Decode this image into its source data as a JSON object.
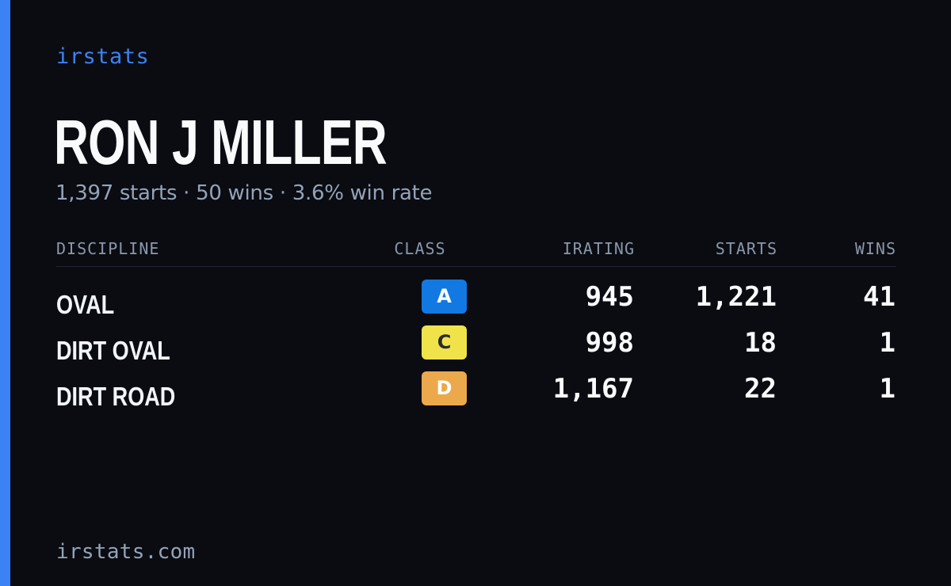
{
  "brand": "irstats",
  "driver": {
    "name": "RON J MILLER",
    "summary": "1,397 starts · 50 wins · 3.6% win rate"
  },
  "table": {
    "headers": {
      "discipline": "DISCIPLINE",
      "class": "CLASS",
      "irating": "IRATING",
      "starts": "STARTS",
      "wins": "WINS"
    },
    "rows": [
      {
        "discipline": "OVAL",
        "class": "A",
        "class_bg": "#1279e3",
        "class_fg": "#ffffff",
        "irating": "945",
        "starts": "1,221",
        "wins": "41"
      },
      {
        "discipline": "DIRT OVAL",
        "class": "C",
        "class_bg": "#f0e34a",
        "class_fg": "#2a2a2a",
        "irating": "998",
        "starts": "18",
        "wins": "1"
      },
      {
        "discipline": "DIRT ROAD",
        "class": "D",
        "class_bg": "#eba94b",
        "class_fg": "#ffffff",
        "irating": "1,167",
        "starts": "22",
        "wins": "1"
      }
    ]
  },
  "footer": "irstats.com",
  "colors": {
    "accent": "#3b82f6",
    "background": "#0a0c12"
  }
}
